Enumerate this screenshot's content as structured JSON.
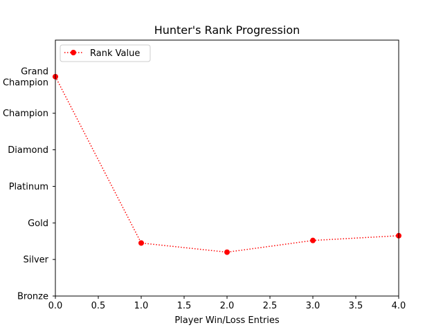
{
  "chart_data": {
    "type": "line",
    "title": "Hunter's Rank Progression",
    "xlabel": "Player Win/Loss Entries",
    "ylabel": "",
    "xlim": [
      0,
      4
    ],
    "ylim": [
      0,
      7
    ],
    "x_ticks": [
      "0.0",
      "0.5",
      "1.0",
      "1.5",
      "2.0",
      "2.5",
      "3.0",
      "3.5",
      "4.0"
    ],
    "y_ticks": [
      {
        "value": 0,
        "lines": [
          "Bronze"
        ]
      },
      {
        "value": 1,
        "lines": [
          "Silver"
        ]
      },
      {
        "value": 2,
        "lines": [
          "Gold"
        ]
      },
      {
        "value": 3,
        "lines": [
          "Platinum"
        ]
      },
      {
        "value": 4,
        "lines": [
          "Diamond"
        ]
      },
      {
        "value": 5,
        "lines": [
          "Champion"
        ]
      },
      {
        "value": 6,
        "lines": [
          "Grand",
          "Champion"
        ]
      }
    ],
    "grid": false,
    "legend_position": "top-left",
    "series": [
      {
        "name": "Rank Value",
        "color": "#ff0000",
        "line_style": "dotted",
        "marker": "circle",
        "x": [
          0,
          1,
          2,
          3,
          4
        ],
        "y": [
          6.0,
          1.45,
          1.2,
          1.52,
          1.65
        ]
      }
    ]
  }
}
